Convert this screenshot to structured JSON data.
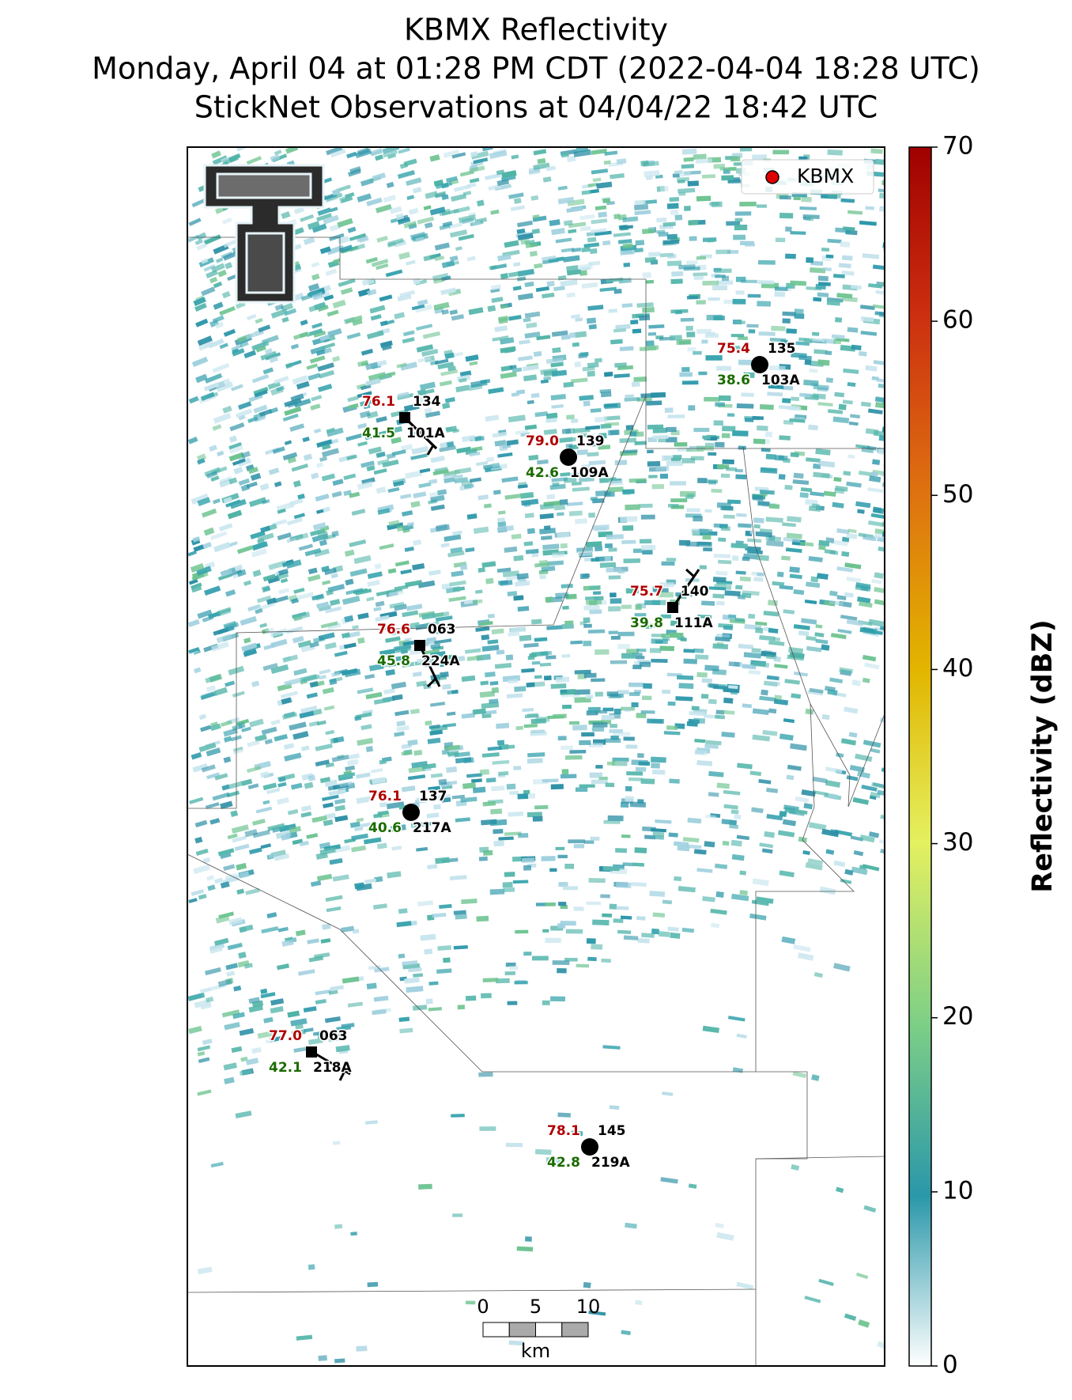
{
  "title": [
    "KBMX Reflectivity",
    "Monday, April 04 at 01:28 PM CDT (2022-04-04 18:28 UTC)",
    "StickNet Observations at 04/04/22 18:42 UTC"
  ],
  "legend": {
    "label": "KBMX",
    "color": "#e00000"
  },
  "stations": [
    {
      "id": "101A",
      "temp": "76.1",
      "dew": "41.5",
      "code": "134",
      "marker": "square"
    },
    {
      "id": "109A",
      "temp": "79.0",
      "dew": "42.6",
      "code": "139",
      "marker": "circle"
    },
    {
      "id": "103A",
      "temp": "75.4",
      "dew": "38.6",
      "code": "135",
      "marker": "circle"
    },
    {
      "id": "111A",
      "temp": "75.7",
      "dew": "39.8",
      "code": "140",
      "marker": "square"
    },
    {
      "id": "224A",
      "temp": "76.6",
      "dew": "45.8",
      "code": "063",
      "marker": "square"
    },
    {
      "id": "217A",
      "temp": "76.1",
      "dew": "40.6",
      "code": "137",
      "marker": "circle"
    },
    {
      "id": "218A",
      "temp": "77.0",
      "dew": "42.1",
      "code": "063",
      "marker": "square"
    },
    {
      "id": "219A",
      "temp": "78.1",
      "dew": "42.8",
      "code": "145",
      "marker": "circle"
    }
  ],
  "colorbar": {
    "label": "Reflectivity (dBZ)",
    "lim": [
      0,
      70
    ],
    "ticks": [
      0,
      10,
      20,
      30,
      40,
      50,
      60,
      70
    ]
  },
  "scale_bar": {
    "ticks": [
      0,
      5,
      10
    ],
    "unit": "km"
  }
}
